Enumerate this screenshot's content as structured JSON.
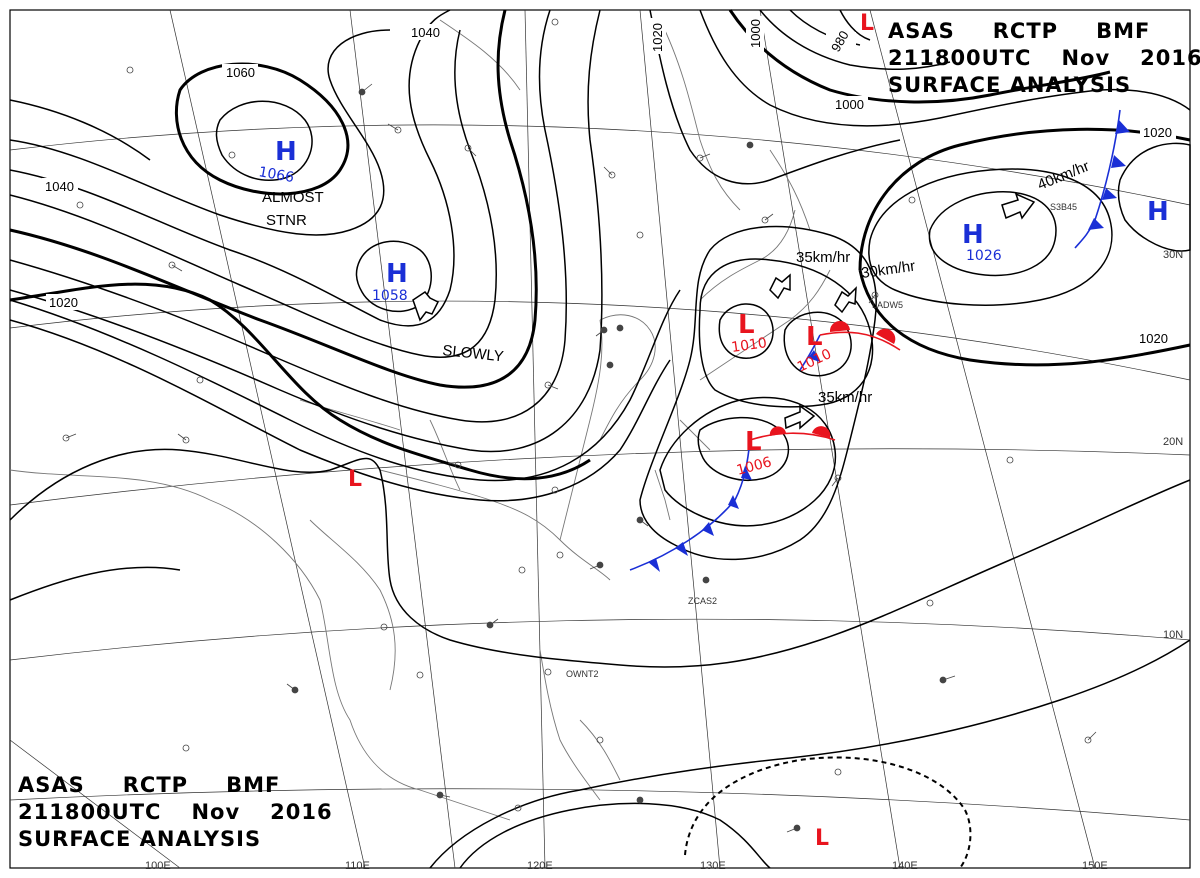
{
  "title": {
    "agency": "ASAS",
    "station": "RCTP",
    "source": "BMF",
    "time": "211800UTC",
    "month": "Nov",
    "year": "2016",
    "product": "SURFACE ANALYSIS"
  },
  "isobar_labels": [
    "1060",
    "1040",
    "1040",
    "1020",
    "1020",
    "1020",
    "1020",
    "1000",
    "1000",
    "980"
  ],
  "pressure_centers": [
    {
      "type": "H",
      "value": "1066",
      "color": "#1a2fd6"
    },
    {
      "type": "H",
      "value": "1058",
      "color": "#1a2fd6"
    },
    {
      "type": "H",
      "value": "1026",
      "color": "#1a2fd6"
    },
    {
      "type": "H",
      "value": "",
      "color": "#1a2fd6"
    },
    {
      "type": "L",
      "value": "1010",
      "color": "#e8141e"
    },
    {
      "type": "L",
      "value": "1010",
      "color": "#e8141e"
    },
    {
      "type": "L",
      "value": "1006",
      "color": "#e8141e"
    },
    {
      "type": "L",
      "value": "",
      "color": "#e8141e"
    },
    {
      "type": "L",
      "value": "",
      "color": "#e8141e"
    },
    {
      "type": "L",
      "value": "",
      "color": "#e8141e"
    }
  ],
  "motion_labels": [
    "ALMOST",
    "STNR",
    "SLOWLY",
    "35km/hr",
    "30km/hr",
    "40km/hr",
    "35km/hr"
  ],
  "lat_labels": [
    "30N",
    "20N",
    "10N"
  ],
  "lon_labels": [
    "100E",
    "110E",
    "120E",
    "130E",
    "140E",
    "150E"
  ],
  "ship_labels": [
    "ZCAS2",
    "LADW5",
    "S3B45",
    "OWNT2"
  ],
  "colors": {
    "high": "#1a2fd6",
    "low": "#e8141e",
    "cold_front": "#1a2fd6",
    "warm_front": "#e8141e",
    "isobar": "#000000",
    "coast": "#777777"
  }
}
